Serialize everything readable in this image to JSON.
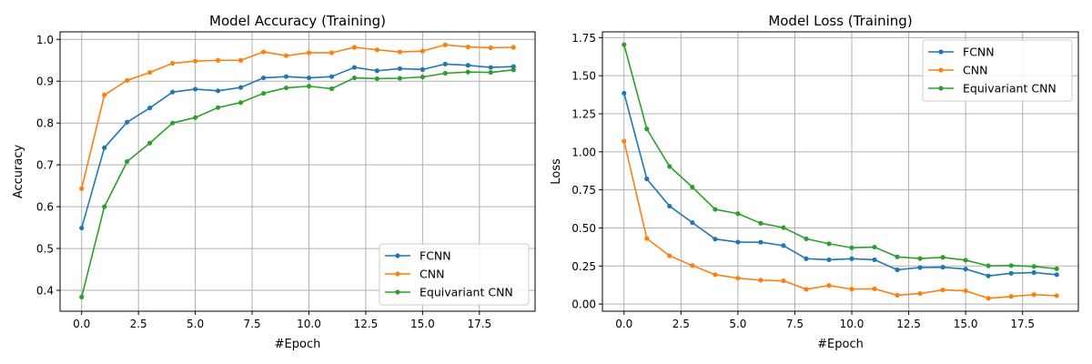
{
  "chart_data": [
    {
      "type": "line",
      "title": "Model Accuracy (Training)",
      "xlabel": "#Epoch",
      "ylabel": "Accuracy",
      "xlim": [
        -0.95,
        19.95
      ],
      "ylim": [
        0.35,
        1.018
      ],
      "xticks": [
        0,
        2.5,
        5,
        7.5,
        10,
        12.5,
        15,
        17.5
      ],
      "xtick_labels": [
        "0.0",
        "2.5",
        "5.0",
        "7.5",
        "10.0",
        "12.5",
        "15.0",
        "17.5"
      ],
      "yticks": [
        0.4,
        0.5,
        0.6,
        0.7,
        0.8,
        0.9,
        1.0
      ],
      "ytick_labels": [
        "0.4",
        "0.5",
        "0.6",
        "0.7",
        "0.8",
        "0.9",
        "1.0"
      ],
      "grid": true,
      "legend": "lower-right",
      "x": [
        0,
        1,
        2,
        3,
        4,
        5,
        6,
        7,
        8,
        9,
        10,
        11,
        12,
        13,
        14,
        15,
        16,
        17,
        18,
        19
      ],
      "series": [
        {
          "name": "FCNN",
          "color": "#1f77b4",
          "values": [
            0.549,
            0.741,
            0.802,
            0.836,
            0.874,
            0.881,
            0.877,
            0.885,
            0.908,
            0.911,
            0.908,
            0.911,
            0.933,
            0.925,
            0.93,
            0.928,
            0.941,
            0.938,
            0.933,
            0.935
          ]
        },
        {
          "name": "CNN",
          "color": "#ff7f0e",
          "values": [
            0.643,
            0.867,
            0.902,
            0.921,
            0.943,
            0.948,
            0.95,
            0.95,
            0.97,
            0.961,
            0.968,
            0.968,
            0.981,
            0.975,
            0.97,
            0.972,
            0.987,
            0.982,
            0.98,
            0.981
          ]
        },
        {
          "name": "Equivariant CNN",
          "color": "#2ca02c",
          "values": [
            0.384,
            0.6,
            0.708,
            0.752,
            0.8,
            0.813,
            0.837,
            0.849,
            0.871,
            0.884,
            0.888,
            0.882,
            0.908,
            0.906,
            0.907,
            0.91,
            0.919,
            0.922,
            0.921,
            0.927
          ]
        }
      ]
    },
    {
      "type": "line",
      "title": "Model Loss (Training)",
      "xlabel": "#Epoch",
      "ylabel": "Loss",
      "xlim": [
        -0.95,
        19.95
      ],
      "ylim": [
        -0.047,
        1.788
      ],
      "xticks": [
        0,
        2.5,
        5,
        7.5,
        10,
        12.5,
        15,
        17.5
      ],
      "xtick_labels": [
        "0.0",
        "2.5",
        "5.0",
        "7.5",
        "10.0",
        "12.5",
        "15.0",
        "17.5"
      ],
      "yticks": [
        0,
        0.25,
        0.5,
        0.75,
        1.0,
        1.25,
        1.5,
        1.75
      ],
      "ytick_labels": [
        "0.00",
        "0.25",
        "0.50",
        "0.75",
        "1.00",
        "1.25",
        "1.50",
        "1.75"
      ],
      "grid": true,
      "legend": "upper-right",
      "x": [
        0,
        1,
        2,
        3,
        4,
        5,
        6,
        7,
        8,
        9,
        10,
        11,
        12,
        13,
        14,
        15,
        16,
        17,
        18,
        19
      ],
      "series": [
        {
          "name": "FCNN",
          "color": "#1f77b4",
          "values": [
            1.385,
            0.822,
            0.643,
            0.535,
            0.427,
            0.407,
            0.406,
            0.384,
            0.298,
            0.291,
            0.298,
            0.291,
            0.225,
            0.24,
            0.242,
            0.23,
            0.185,
            0.202,
            0.207,
            0.193
          ]
        },
        {
          "name": "CNN",
          "color": "#ff7f0e",
          "values": [
            1.07,
            0.431,
            0.317,
            0.253,
            0.193,
            0.17,
            0.157,
            0.153,
            0.097,
            0.122,
            0.098,
            0.1,
            0.058,
            0.069,
            0.093,
            0.087,
            0.038,
            0.05,
            0.062,
            0.055
          ]
        },
        {
          "name": "Equivariant CNN",
          "color": "#2ca02c",
          "values": [
            1.704,
            1.15,
            0.904,
            0.768,
            0.622,
            0.594,
            0.531,
            0.502,
            0.429,
            0.396,
            0.37,
            0.374,
            0.31,
            0.299,
            0.307,
            0.288,
            0.251,
            0.253,
            0.247,
            0.232
          ]
        }
      ]
    }
  ]
}
